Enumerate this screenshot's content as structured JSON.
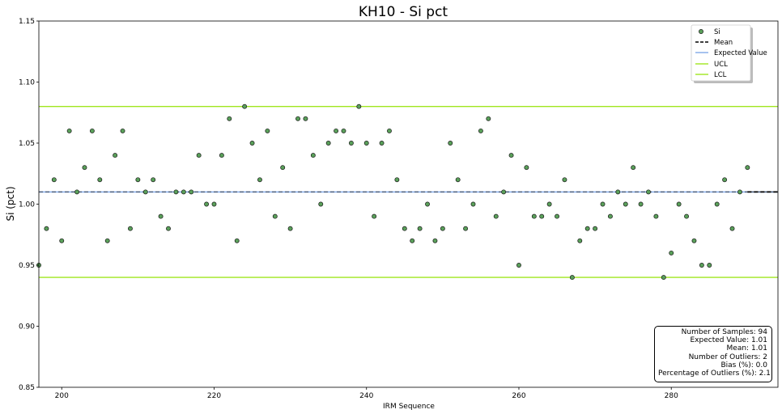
{
  "chart_data": {
    "type": "scatter",
    "title": "KH10 - Si pct",
    "xlabel": "IRM Sequence",
    "ylabel": "Si (pct)",
    "xlim": [
      197,
      294
    ],
    "ylim": [
      0.85,
      1.15
    ],
    "xticks": [
      "200",
      "220",
      "240",
      "260",
      "280"
    ],
    "yticks": [
      "0.85",
      "0.90",
      "0.95",
      "1.00",
      "1.05",
      "1.10",
      "1.15"
    ],
    "grid": false,
    "legend_position": "top-right",
    "legend": {
      "si": "Si",
      "mean": "Mean",
      "expected": "Expected Value",
      "ucl": "UCL",
      "lcl": "LCL"
    },
    "series": [
      {
        "name": "Si",
        "x": [
          197,
          198,
          199,
          200,
          201,
          202,
          203,
          204,
          205,
          206,
          207,
          208,
          209,
          210,
          211,
          212,
          213,
          214,
          215,
          216,
          217,
          218,
          219,
          220,
          221,
          222,
          223,
          224,
          225,
          226,
          227,
          228,
          229,
          230,
          231,
          232,
          233,
          234,
          235,
          236,
          237,
          238,
          239,
          240,
          241,
          242,
          243,
          244,
          245,
          246,
          247,
          248,
          249,
          250,
          251,
          252,
          253,
          254,
          255,
          256,
          257,
          258,
          259,
          260,
          261,
          262,
          263,
          264,
          265,
          266,
          267,
          268,
          269,
          270,
          271,
          272,
          273,
          274,
          275,
          276,
          277,
          278,
          279,
          280,
          281,
          282,
          283,
          284,
          285,
          286,
          287,
          288,
          289,
          290
        ],
        "y": [
          0.95,
          0.98,
          1.02,
          0.97,
          1.06,
          1.01,
          1.03,
          1.06,
          1.02,
          0.97,
          1.04,
          1.06,
          0.98,
          1.02,
          1.01,
          1.02,
          0.99,
          0.98,
          1.01,
          1.01,
          1.01,
          1.04,
          1.0,
          1.0,
          1.04,
          1.07,
          0.97,
          1.08,
          1.05,
          1.02,
          1.06,
          0.99,
          1.03,
          0.98,
          1.07,
          1.07,
          1.04,
          1.0,
          1.05,
          1.06,
          1.06,
          1.05,
          1.08,
          1.05,
          0.99,
          1.05,
          1.06,
          1.02,
          0.98,
          0.97,
          0.98,
          1.0,
          0.97,
          0.98,
          1.05,
          1.02,
          0.98,
          1.0,
          1.06,
          1.07,
          0.99,
          1.01,
          1.04,
          0.95,
          1.03,
          0.99,
          0.99,
          1.0,
          0.99,
          1.02,
          0.94,
          0.97,
          0.98,
          0.98,
          1.0,
          0.99,
          1.01,
          1.0,
          1.03,
          1.0,
          1.01,
          0.99,
          0.94,
          0.96,
          1.0,
          0.99,
          0.97,
          0.95,
          0.95,
          1.0,
          1.02,
          0.98,
          1.01,
          1.03
        ]
      }
    ],
    "mean": 1.01,
    "mean_from_x": 290,
    "expected_value": 1.01,
    "ucl": 1.08,
    "lcl": 0.94,
    "colors": {
      "points": "#5aa05a",
      "point_edge": "#1a1a1a",
      "mean": "#000000",
      "expected": "#7fa7e8",
      "ucl": "#9fe61e",
      "lcl": "#9fe61e"
    },
    "stats": [
      "Number of Samples: 94",
      "Expected Value: 1.01",
      "Mean: 1.01",
      "Number of Outliers: 2",
      "Bias (%): 0.0",
      "Percentage of Outliers (%): 2.1"
    ]
  }
}
